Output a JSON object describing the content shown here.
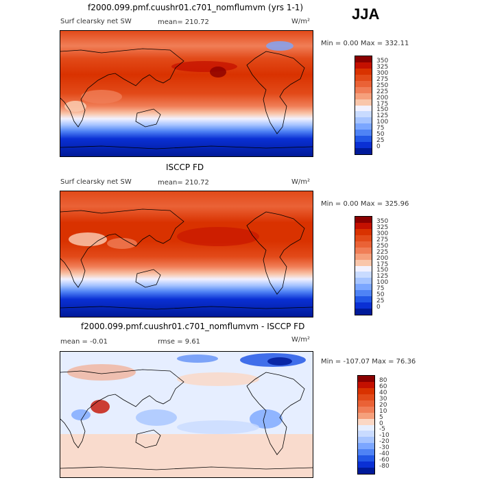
{
  "season": "JJA",
  "panels": [
    {
      "title": "f2000.099.pmf.cuushr01.c701_nomflumvm (yrs 1-1)",
      "field": "Surf clearsky net SW",
      "stat1": "mean= 210.72",
      "stat2": "",
      "units": "W/m²",
      "minmax": "Min =    0.00 Max = 332.11",
      "colorbar": {
        "labels": [
          "350",
          "325",
          "300",
          "275",
          "250",
          "225",
          "200",
          "175",
          "150",
          "125",
          "100",
          "75",
          "50",
          "25",
          "0"
        ],
        "colors": [
          "#8a0000",
          "#c41000",
          "#d93200",
          "#e24a19",
          "#ea6236",
          "#f07e57",
          "#f5a07c",
          "#f9c6ab",
          "#f1f1ff",
          "#c9dbff",
          "#a6c4ff",
          "#7ba6ff",
          "#4f83f5",
          "#2257e6",
          "#0a30d4",
          "#001a99"
        ]
      }
    },
    {
      "title": "ISCCP FD",
      "field": "Surf clearsky net SW",
      "stat1": "mean= 210.72",
      "stat2": "",
      "units": "W/m²",
      "minmax": "Min =    0.00 Max = 325.96",
      "colorbar": {
        "labels": [
          "350",
          "325",
          "300",
          "275",
          "250",
          "225",
          "200",
          "175",
          "150",
          "125",
          "100",
          "75",
          "50",
          "25",
          "0"
        ],
        "colors": [
          "#8a0000",
          "#c41000",
          "#d93200",
          "#e24a19",
          "#ea6236",
          "#f07e57",
          "#f5a07c",
          "#f9c6ab",
          "#f1f1ff",
          "#c9dbff",
          "#a6c4ff",
          "#7ba6ff",
          "#4f83f5",
          "#2257e6",
          "#0a30d4",
          "#001a99"
        ]
      }
    },
    {
      "title": "f2000.099.pmf.cuushr01.c701_nomflumvm - ISCCP FD",
      "field": "",
      "stat1": "mean =   -0.01",
      "stat2": "rmse =    9.61",
      "units": "W/m²",
      "minmax": "Min = -107.07 Max =  76.36",
      "colorbar": {
        "labels": [
          "80",
          "60",
          "40",
          "30",
          "20",
          "10",
          "5",
          "0",
          "-5",
          "-10",
          "-20",
          "-30",
          "-40",
          "-60",
          "-80"
        ],
        "colors": [
          "#8a0000",
          "#c41000",
          "#d93200",
          "#e24a19",
          "#ea6236",
          "#f07e57",
          "#f5a07c",
          "#fbd7c4",
          "#e6eeff",
          "#c9dbff",
          "#a6c4ff",
          "#7ba6ff",
          "#4f83f5",
          "#2257e6",
          "#0a30d4",
          "#001a99"
        ]
      }
    }
  ]
}
